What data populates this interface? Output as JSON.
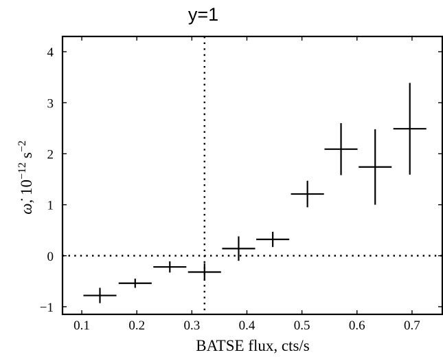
{
  "chart_data": {
    "type": "scatter",
    "title": "y=1",
    "xlabel": "BATSE flux, cts/s",
    "ylabel": {
      "symbol": "ω̇",
      "text": ", 10",
      "exp1": "−12",
      "unit": " s",
      "exp2": "−2"
    },
    "xlim": [
      0.065,
      0.755
    ],
    "ylim": [
      -1.15,
      4.3
    ],
    "xticks": [
      0.1,
      0.2,
      0.3,
      0.4,
      0.5,
      0.6,
      0.7
    ],
    "xtick_labels": [
      "0.1",
      "0.2",
      "0.3",
      "0.4",
      "0.5",
      "0.6",
      "0.7"
    ],
    "yticks": [
      -1,
      0,
      1,
      2,
      3,
      4
    ],
    "ytick_labels": [
      "−1",
      "0",
      "1",
      "2",
      "3",
      "4"
    ],
    "grid": false,
    "reference_lines": [
      {
        "orientation": "horizontal",
        "y": 0,
        "style": "dotted"
      },
      {
        "orientation": "vertical",
        "x": 0.323,
        "style": "dotted"
      }
    ],
    "points": [
      {
        "x": 0.133,
        "y": -0.78,
        "x_err": 0.03,
        "y_err": 0.15
      },
      {
        "x": 0.197,
        "y": -0.54,
        "x_err": 0.03,
        "y_err": 0.09
      },
      {
        "x": 0.26,
        "y": -0.22,
        "x_err": 0.03,
        "y_err": 0.11
      },
      {
        "x": 0.323,
        "y": -0.32,
        "x_err": 0.03,
        "y_err": 0.17
      },
      {
        "x": 0.385,
        "y": 0.14,
        "x_err": 0.03,
        "y_err": 0.24
      },
      {
        "x": 0.447,
        "y": 0.32,
        "x_err": 0.03,
        "y_err": 0.15
      },
      {
        "x": 0.51,
        "y": 1.21,
        "x_err": 0.03,
        "y_err": 0.26
      },
      {
        "x": 0.571,
        "y": 2.09,
        "x_err": 0.03,
        "y_err": 0.51
      },
      {
        "x": 0.633,
        "y": 1.74,
        "x_err": 0.03,
        "y_err": 0.74
      },
      {
        "x": 0.696,
        "y": 2.49,
        "x_err": 0.03,
        "y_err": 0.9
      }
    ]
  }
}
